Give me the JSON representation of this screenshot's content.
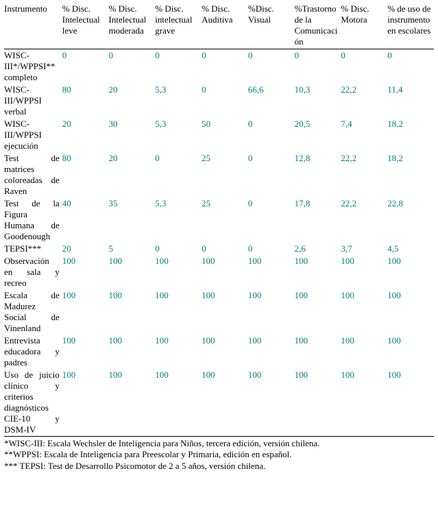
{
  "table": {
    "columns": [
      "Instrumento",
      "% Disc. Intelectual leve",
      "% Disc. Intelectual moderada",
      "% Disc. intelectual grave",
      "% Disc. Auditiva",
      "%Disc. Visual",
      "%Trastorno de la Comunicación",
      "% Disc. Motora",
      "% de uso de instrumento en escolares"
    ],
    "rows": [
      {
        "label": "WISC-III*/WPPSI** completo",
        "values": [
          "0",
          "0",
          "0",
          "0",
          "0",
          "0",
          "0",
          "0"
        ]
      },
      {
        "label": "WISC-III/WPPSI verbal",
        "values": [
          "80",
          "20",
          "5,3",
          "0",
          "66,6",
          "10,3",
          "22,2",
          "11,4"
        ]
      },
      {
        "label": "WISC-III/WPPSI ejecución",
        "values": [
          "20",
          "30",
          "5,3",
          "50",
          "0",
          "20,5",
          "7,4",
          "18,2"
        ]
      },
      {
        "label": "Test de matrices coloreadas de Raven",
        "values": [
          "80",
          "20",
          "0",
          "25",
          "0",
          "12,8",
          "22,2",
          "18,2"
        ]
      },
      {
        "label": "Test de la Figura Humana de Goodenough",
        "values": [
          "40",
          "35",
          "5,3",
          "25",
          "0",
          "17,8",
          "22,2",
          "22,8"
        ]
      },
      {
        "label": "TEPSI***",
        "values": [
          "20",
          "5",
          "0",
          "0",
          "0",
          "2,6",
          "3,7",
          "4,5"
        ]
      },
      {
        "label": "Observación en sala y recreo",
        "values": [
          "100",
          "100",
          "100",
          "100",
          "100",
          "100",
          "100",
          "100"
        ]
      },
      {
        "label": "Escala de Madurez Social de Vinenland",
        "values": [
          "100",
          "100",
          "100",
          "100",
          "100",
          "100",
          "100",
          "100"
        ]
      },
      {
        "label": "Entrevista educadora y padres",
        "values": [
          "100",
          "100",
          "100",
          "100",
          "100",
          "100",
          "100",
          "100"
        ]
      },
      {
        "label": "Uso de juicio clínico y criterios diagnósticos CIE-10 y DSM-IV",
        "values": [
          "100",
          "100",
          "100",
          "100",
          "100",
          "100",
          "100",
          "100"
        ]
      }
    ],
    "value_color": "#008080",
    "text_color": "#000000",
    "background_color": "#ffffff",
    "border_color": "#000000",
    "font_family": "Times New Roman",
    "header_fontsize": 13,
    "body_fontsize": 13,
    "footnote_fontsize": 13
  },
  "footnotes": [
    "*WISC-III: Escala Wechsler de Inteligencia para Niños, tercera edición, versión chilena.",
    "**WPPSI: Escala de Inteligencia para Preescolar y Primaria, edición en español.",
    "*** TEPSI: Test de Desarrollo Psicomotor de 2 a 5 años, versión chilena."
  ]
}
